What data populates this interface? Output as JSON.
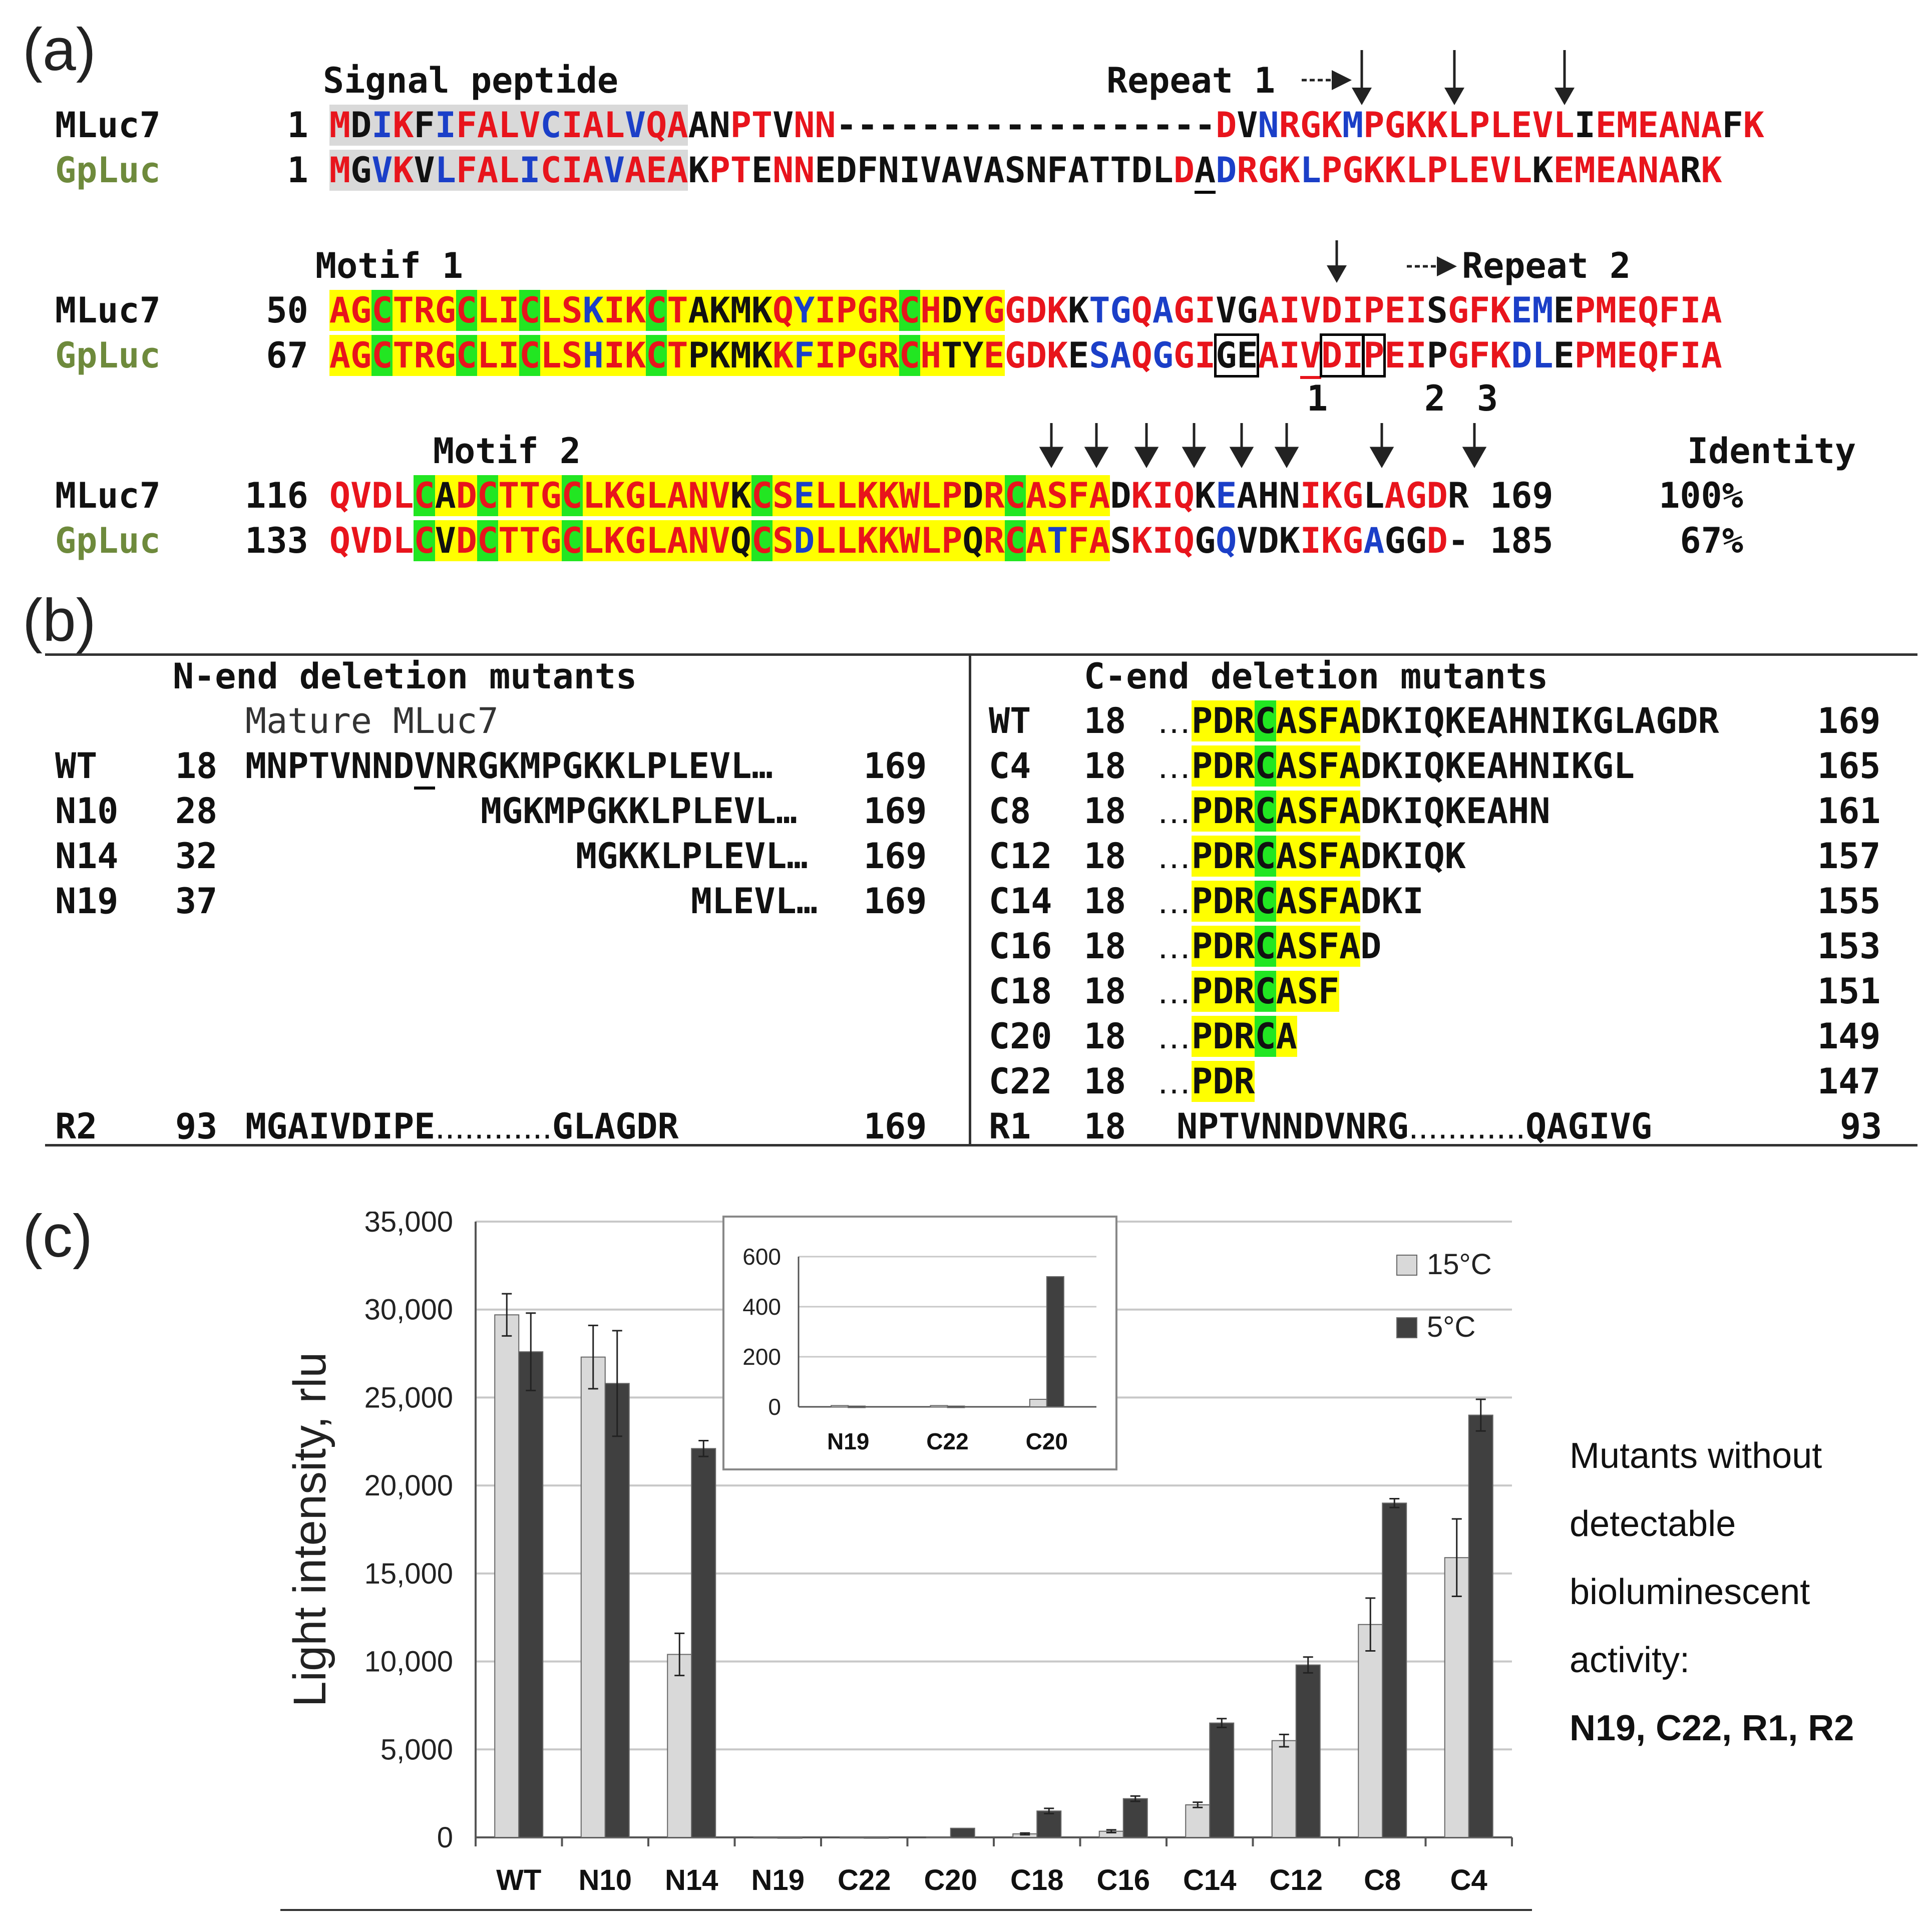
{
  "panel_a": {
    "label": "(a)",
    "signal_peptide_label": "Signal peptide",
    "repeat1_label": "Repeat 1",
    "repeat2_label": "Repeat 2",
    "motif1_label": "Motif 1",
    "motif2_label": "Motif 2",
    "identity_label": "Identity",
    "seq_names": {
      "mluc7": "MLuc7",
      "gpluc": "GpLuc"
    },
    "block1": {
      "mluc_start": "1",
      "gp_start": "1"
    },
    "block2": {
      "mluc_start": "50",
      "gp_start": "67"
    },
    "block3": {
      "mluc_start": "116",
      "gp_start": "133",
      "mluc_end": "169",
      "gp_end": "185",
      "mluc_identity": "100%",
      "gp_identity": "67%"
    },
    "site_numbers": [
      "1",
      "2",
      "3"
    ]
  },
  "panel_b": {
    "label": "(b)",
    "n_title": "N-end deletion mutants",
    "c_title": "C-end deletion mutants",
    "mature_label": "Mature MLuc7",
    "n_rows": [
      {
        "name": "WT",
        "start": "18",
        "seq": "MNPTVNNDVNRGKMPGKKLPLEVL…",
        "end": "169"
      },
      {
        "name": "N10",
        "start": "28",
        "seq": "MGKMPGKKLPLEVL…",
        "end": "169"
      },
      {
        "name": "N14",
        "start": "32",
        "seq": "MGKKLPLEVL…",
        "end": "169"
      },
      {
        "name": "N19",
        "start": "37",
        "seq": "MLEVL…",
        "end": "169"
      },
      {
        "name": "R2",
        "start": "93",
        "seq1": "MGAIVDIPE",
        "seq2": "GLAGDR",
        "end": "169"
      }
    ],
    "c_rows": [
      {
        "name": "WT",
        "start": "18",
        "tail": "DKIQKEAHNIKGLAGDR",
        "end": "169"
      },
      {
        "name": "C4",
        "start": "18",
        "tail": "DKIQKEAHNIKGL",
        "end": "165"
      },
      {
        "name": "C8",
        "start": "18",
        "tail": "DKIQKEAHN",
        "end": "161"
      },
      {
        "name": "C12",
        "start": "18",
        "tail": "DKIQK",
        "end": "157"
      },
      {
        "name": "C14",
        "start": "18",
        "tail": "DKI",
        "end": "155"
      },
      {
        "name": "C16",
        "start": "18",
        "tail": "D",
        "end": "153"
      },
      {
        "name": "C18",
        "start": "18",
        "tail": "",
        "end": "151"
      },
      {
        "name": "C20",
        "start": "18",
        "tail": "",
        "end": "149"
      },
      {
        "name": "C22",
        "start": "18",
        "tail": "",
        "end": "147"
      },
      {
        "name": "R1",
        "start": "18",
        "seq1": "NPTVNNDVNRG",
        "seq2": "QAGIVG",
        "end": "93"
      }
    ]
  },
  "panel_c": {
    "label": "(c)",
    "note_lines": [
      "Mutants without",
      "detectable",
      "bioluminescent",
      "activity:"
    ],
    "note_bold": "N19, C22, R1, R2"
  },
  "chart_data": [
    {
      "type": "bar",
      "title": "",
      "ylabel": "Light intensity, rlu",
      "xlabel": "",
      "ylim": [
        0,
        35000
      ],
      "yticks": [
        "0",
        "5,000",
        "10,000",
        "15,000",
        "20,000",
        "25,000",
        "30,000",
        "35,000"
      ],
      "categories": [
        "WT",
        "N10",
        "N14",
        "N19",
        "C22",
        "C20",
        "C18",
        "C16",
        "C14",
        "C12",
        "C8",
        "C4"
      ],
      "series": [
        {
          "name": "15°C",
          "color": "#d9d9d9",
          "values": [
            29700,
            27300,
            10400,
            20,
            20,
            30,
            200,
            350,
            1850,
            5500,
            12100,
            15900
          ],
          "errors": [
            1200,
            1800,
            1200,
            0,
            0,
            0,
            50,
            80,
            150,
            350,
            1500,
            2200
          ]
        },
        {
          "name": "5°C",
          "color": "#404040",
          "values": [
            27600,
            25800,
            22100,
            10,
            10,
            520,
            1500,
            2200,
            6500,
            9800,
            19000,
            24000
          ],
          "errors": [
            2200,
            3000,
            450,
            0,
            0,
            0,
            150,
            150,
            250,
            450,
            250,
            900
          ]
        }
      ],
      "legend": "top-right"
    },
    {
      "type": "bar",
      "title": "",
      "ylim": [
        0,
        600
      ],
      "yticks": [
        "0",
        "200",
        "400",
        "600"
      ],
      "categories": [
        "N19",
        "C22",
        "C20"
      ],
      "series": [
        {
          "name": "15°C",
          "color": "#d9d9d9",
          "values": [
            5,
            5,
            30
          ]
        },
        {
          "name": "5°C",
          "color": "#404040",
          "values": [
            3,
            3,
            520
          ]
        }
      ]
    }
  ]
}
